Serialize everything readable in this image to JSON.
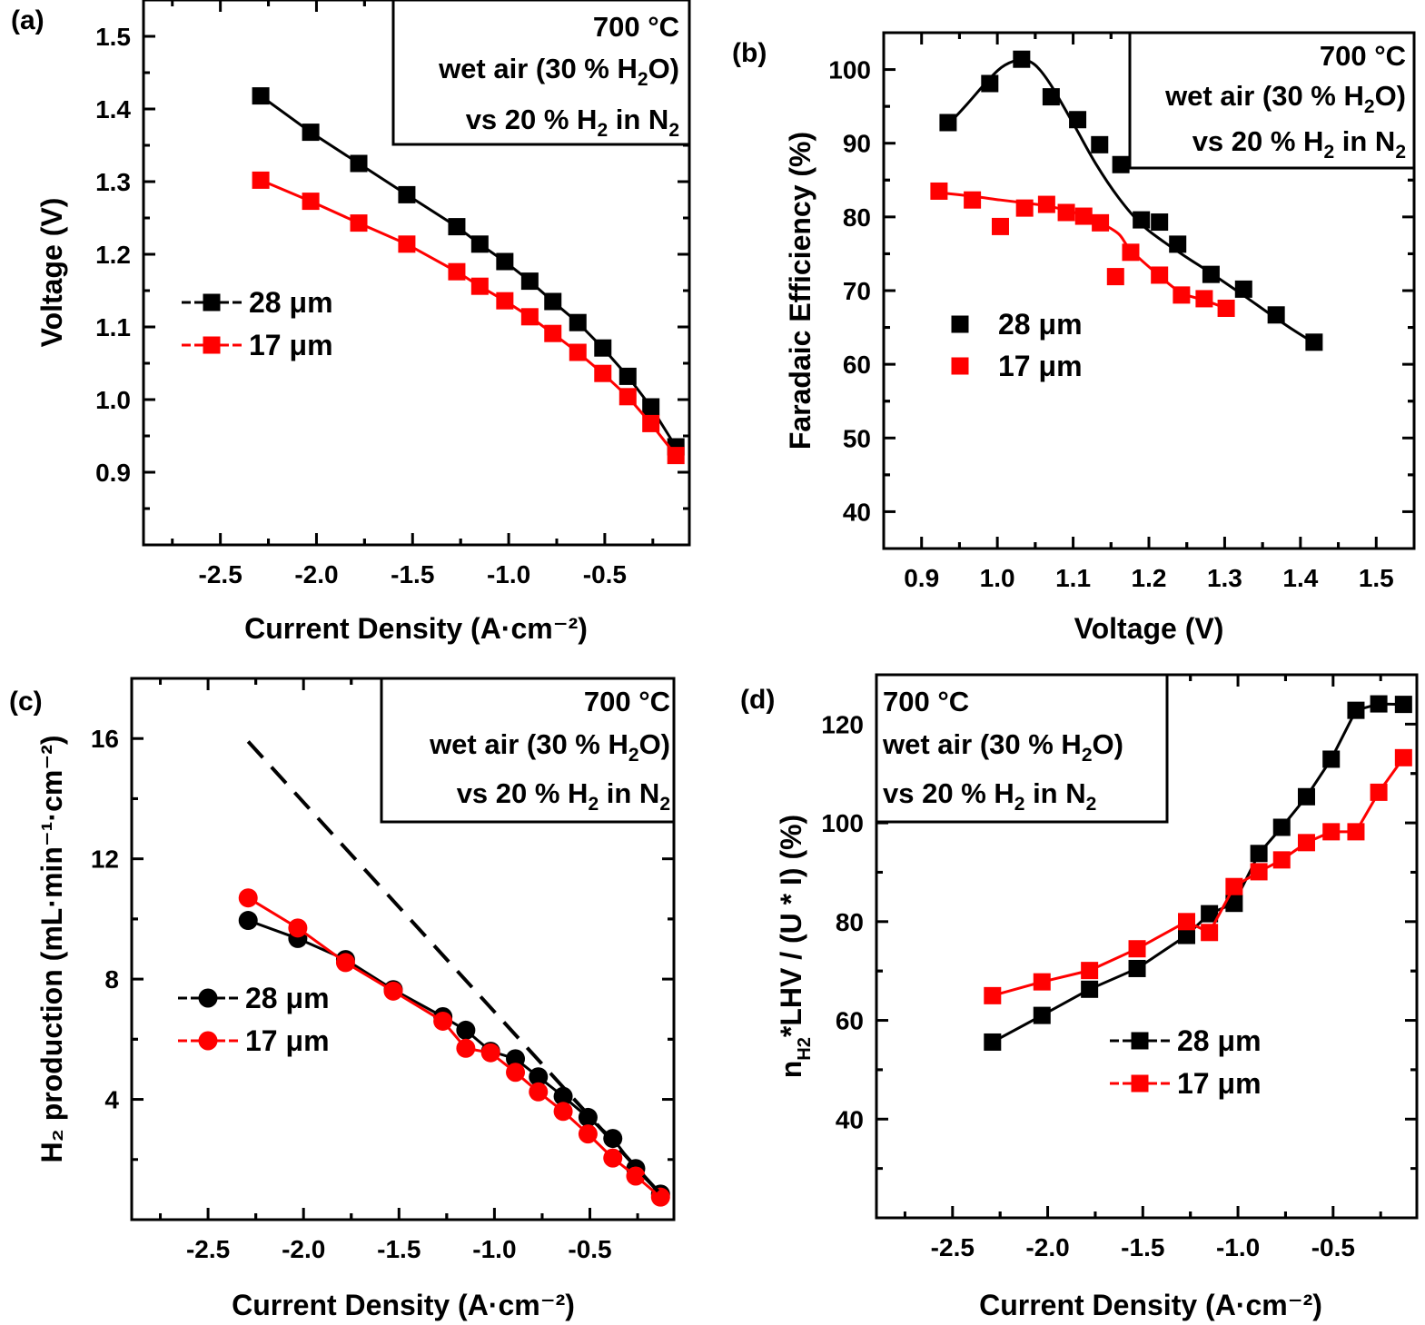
{
  "conditions": {
    "temp": "700 °C",
    "l2_pre": "wet air (30 % H",
    "l2_sub": "2",
    "l2_post": "O)",
    "l3_pre": "vs 20 % H",
    "l3_sub": "2",
    "l3_mid": " in N",
    "l3_sub2": "2"
  },
  "chart_data": [
    {
      "id": "a",
      "panel_label": "(a)",
      "type": "line",
      "xlabel": "Current Density (A·cm⁻²)",
      "ylabel": "Voltage (V)",
      "xlim": [
        -2.9,
        -0.06
      ],
      "ylim": [
        0.8,
        1.55
      ],
      "xticks": [
        -2.5,
        -2.0,
        -1.5,
        -1.0,
        -0.5
      ],
      "xtick_labels": [
        "-2.5",
        "-2.0",
        "-1.5",
        "-1.0",
        "-0.5"
      ],
      "yticks": [
        0.9,
        1.0,
        1.1,
        1.2,
        1.3,
        1.4,
        1.5
      ],
      "ytick_labels": [
        "0.9",
        "1.0",
        "1.1",
        "1.2",
        "1.3",
        "1.4",
        "1.5"
      ],
      "legend": "middle-left",
      "series": [
        {
          "name": "28 μm",
          "color": "#000000",
          "marker": "square",
          "line": true,
          "x": [
            -2.29,
            -2.03,
            -1.78,
            -1.53,
            -1.27,
            -1.15,
            -1.02,
            -0.89,
            -0.77,
            -0.64,
            -0.51,
            -0.38,
            -0.26,
            -0.13
          ],
          "y": [
            1.418,
            1.368,
            1.325,
            1.282,
            1.238,
            1.214,
            1.19,
            1.163,
            1.135,
            1.106,
            1.071,
            1.032,
            0.99,
            0.935
          ]
        },
        {
          "name": "17 μm",
          "color": "#ff0000",
          "marker": "square",
          "line": true,
          "x": [
            -2.29,
            -2.03,
            -1.78,
            -1.53,
            -1.27,
            -1.15,
            -1.02,
            -0.89,
            -0.77,
            -0.64,
            -0.51,
            -0.38,
            -0.26,
            -0.13
          ],
          "y": [
            1.302,
            1.273,
            1.243,
            1.214,
            1.176,
            1.156,
            1.136,
            1.114,
            1.091,
            1.065,
            1.036,
            1.004,
            0.967,
            0.923
          ]
        }
      ]
    },
    {
      "id": "b",
      "panel_label": "(b)",
      "type": "scatter",
      "xlabel": "Voltage (V)",
      "ylabel": "Faradaic Efficiency (%)",
      "xlim": [
        0.85,
        1.55
      ],
      "ylim": [
        35,
        105
      ],
      "xticks": [
        0.9,
        1.0,
        1.1,
        1.2,
        1.3,
        1.4,
        1.5
      ],
      "xtick_labels": [
        "0.9",
        "1.0",
        "1.1",
        "1.2",
        "1.3",
        "1.4",
        "1.5"
      ],
      "yticks": [
        40,
        50,
        60,
        70,
        80,
        90,
        100
      ],
      "ytick_labels": [
        "40",
        "50",
        "60",
        "70",
        "80",
        "90",
        "100"
      ],
      "legend": "middle-left",
      "series": [
        {
          "name": "28 μm",
          "color": "#000000",
          "marker": "square",
          "x": [
            0.935,
            0.99,
            1.032,
            1.071,
            1.106,
            1.135,
            1.163,
            1.19,
            1.214,
            1.238,
            1.282,
            1.325,
            1.368,
            1.418
          ],
          "y": [
            92.8,
            98.1,
            101.4,
            96.3,
            93.2,
            89.8,
            87.1,
            79.6,
            79.3,
            76.3,
            72.2,
            70.2,
            66.7,
            63.0
          ],
          "fit_x": [
            0.935,
            0.96,
            0.99,
            1.01,
            1.032,
            1.05,
            1.07,
            1.1,
            1.13,
            1.16,
            1.19,
            1.22,
            1.25,
            1.28,
            1.32,
            1.36,
            1.39,
            1.418
          ],
          "fit_y": [
            92.5,
            95.3,
            98.8,
            100.6,
            101.3,
            100.6,
            98.0,
            92.7,
            87.2,
            82.6,
            79.0,
            76.6,
            74.5,
            72.5,
            69.7,
            66.8,
            64.7,
            62.9
          ]
        },
        {
          "name": "17 μm",
          "color": "#ff0000",
          "marker": "square",
          "x": [
            0.923,
            0.967,
            1.004,
            1.036,
            1.065,
            1.091,
            1.114,
            1.136,
            1.156,
            1.176,
            1.214,
            1.243,
            1.273,
            1.302
          ],
          "y": [
            83.5,
            82.3,
            78.7,
            81.2,
            81.7,
            80.6,
            80.1,
            79.2,
            71.9,
            75.2,
            72.1,
            69.4,
            68.9,
            67.6
          ],
          "fit_x": [
            0.923,
            0.967,
            1.004,
            1.036,
            1.065,
            1.091,
            1.114,
            1.136,
            1.16,
            1.176,
            1.214,
            1.243,
            1.273,
            1.302
          ],
          "fit_y": [
            83.3,
            82.8,
            82.3,
            81.9,
            81.5,
            80.9,
            80.2,
            79.2,
            77.7,
            75.5,
            72.0,
            69.7,
            68.7,
            67.6
          ]
        }
      ]
    },
    {
      "id": "c",
      "panel_label": "(c)",
      "type": "line",
      "xlabel": "Current Density (A·cm⁻²)",
      "ylabel": "H₂ production (mL·min⁻¹·cm⁻²)",
      "xlim": [
        -2.9,
        -0.06
      ],
      "ylim": [
        0,
        18
      ],
      "xticks": [
        -2.5,
        -2.0,
        -1.5,
        -1.0,
        -0.5
      ],
      "xtick_labels": [
        "-2.5",
        "-2.0",
        "-1.5",
        "-1.0",
        "-0.5"
      ],
      "yticks": [
        4,
        8,
        12,
        16
      ],
      "ytick_labels": [
        "4",
        "8",
        "12",
        "16"
      ],
      "legend": "middle-left",
      "series": [
        {
          "name": "28 μm",
          "color": "#000000",
          "marker": "circle",
          "line": true,
          "x": [
            -2.29,
            -2.03,
            -1.78,
            -1.53,
            -1.27,
            -1.15,
            -1.02,
            -0.89,
            -0.77,
            -0.64,
            -0.51,
            -0.38,
            -0.26,
            -0.13
          ],
          "y": [
            9.95,
            9.35,
            8.65,
            7.65,
            6.75,
            6.3,
            5.6,
            5.35,
            4.75,
            4.1,
            3.4,
            2.7,
            1.7,
            0.85
          ]
        },
        {
          "name": "17 μm",
          "color": "#ff0000",
          "marker": "circle",
          "line": true,
          "x": [
            -2.29,
            -2.03,
            -1.78,
            -1.53,
            -1.27,
            -1.15,
            -1.02,
            -0.89,
            -0.77,
            -0.64,
            -0.51,
            -0.38,
            -0.26,
            -0.13
          ],
          "y": [
            10.7,
            9.7,
            8.55,
            7.6,
            6.6,
            5.7,
            5.55,
            4.9,
            4.25,
            3.6,
            2.85,
            2.05,
            1.45,
            0.75
          ]
        },
        {
          "color": "#000000",
          "marker": "none",
          "line": "dashed",
          "x": [
            -2.29,
            -0.13
          ],
          "y": [
            15.9,
            0.85
          ]
        }
      ]
    },
    {
      "id": "d",
      "panel_label": "(d)",
      "type": "line",
      "xlabel": "Current Density (A·cm⁻²)",
      "ylabel_parts": [
        "n",
        "H2",
        "*LHV / (U * I) (%)"
      ],
      "xlim": [
        -2.9,
        -0.06
      ],
      "ylim": [
        20,
        130
      ],
      "xticks": [
        -2.5,
        -2.0,
        -1.5,
        -1.0,
        -0.5
      ],
      "xtick_labels": [
        "-2.5",
        "-2.0",
        "-1.5",
        "-1.0",
        "-0.5"
      ],
      "yticks": [
        40,
        60,
        80,
        100,
        120
      ],
      "ytick_labels": [
        "40",
        "60",
        "80",
        "100",
        "120"
      ],
      "legend": "lower-right",
      "series": [
        {
          "name": "28 μm",
          "color": "#000000",
          "marker": "square",
          "line": true,
          "x": [
            -2.29,
            -2.03,
            -1.78,
            -1.53,
            -1.27,
            -1.15,
            -1.02,
            -0.89,
            -0.77,
            -0.64,
            -0.51,
            -0.38,
            -0.26,
            -0.13
          ],
          "y": [
            55.6,
            61.0,
            66.3,
            70.5,
            77.2,
            81.6,
            83.7,
            93.8,
            99.1,
            105.3,
            112.9,
            122.8,
            124.1,
            124.0
          ]
        },
        {
          "name": "17 μm",
          "color": "#ff0000",
          "marker": "square",
          "line": true,
          "x": [
            -2.29,
            -2.03,
            -1.78,
            -1.53,
            -1.27,
            -1.15,
            -1.02,
            -0.89,
            -0.77,
            -0.64,
            -0.51,
            -0.38,
            -0.26,
            -0.13
          ],
          "y": [
            65.0,
            67.8,
            70.1,
            74.5,
            80.0,
            77.8,
            87.1,
            90.1,
            92.5,
            96.0,
            98.2,
            98.2,
            106.2,
            113.2
          ]
        }
      ]
    }
  ]
}
